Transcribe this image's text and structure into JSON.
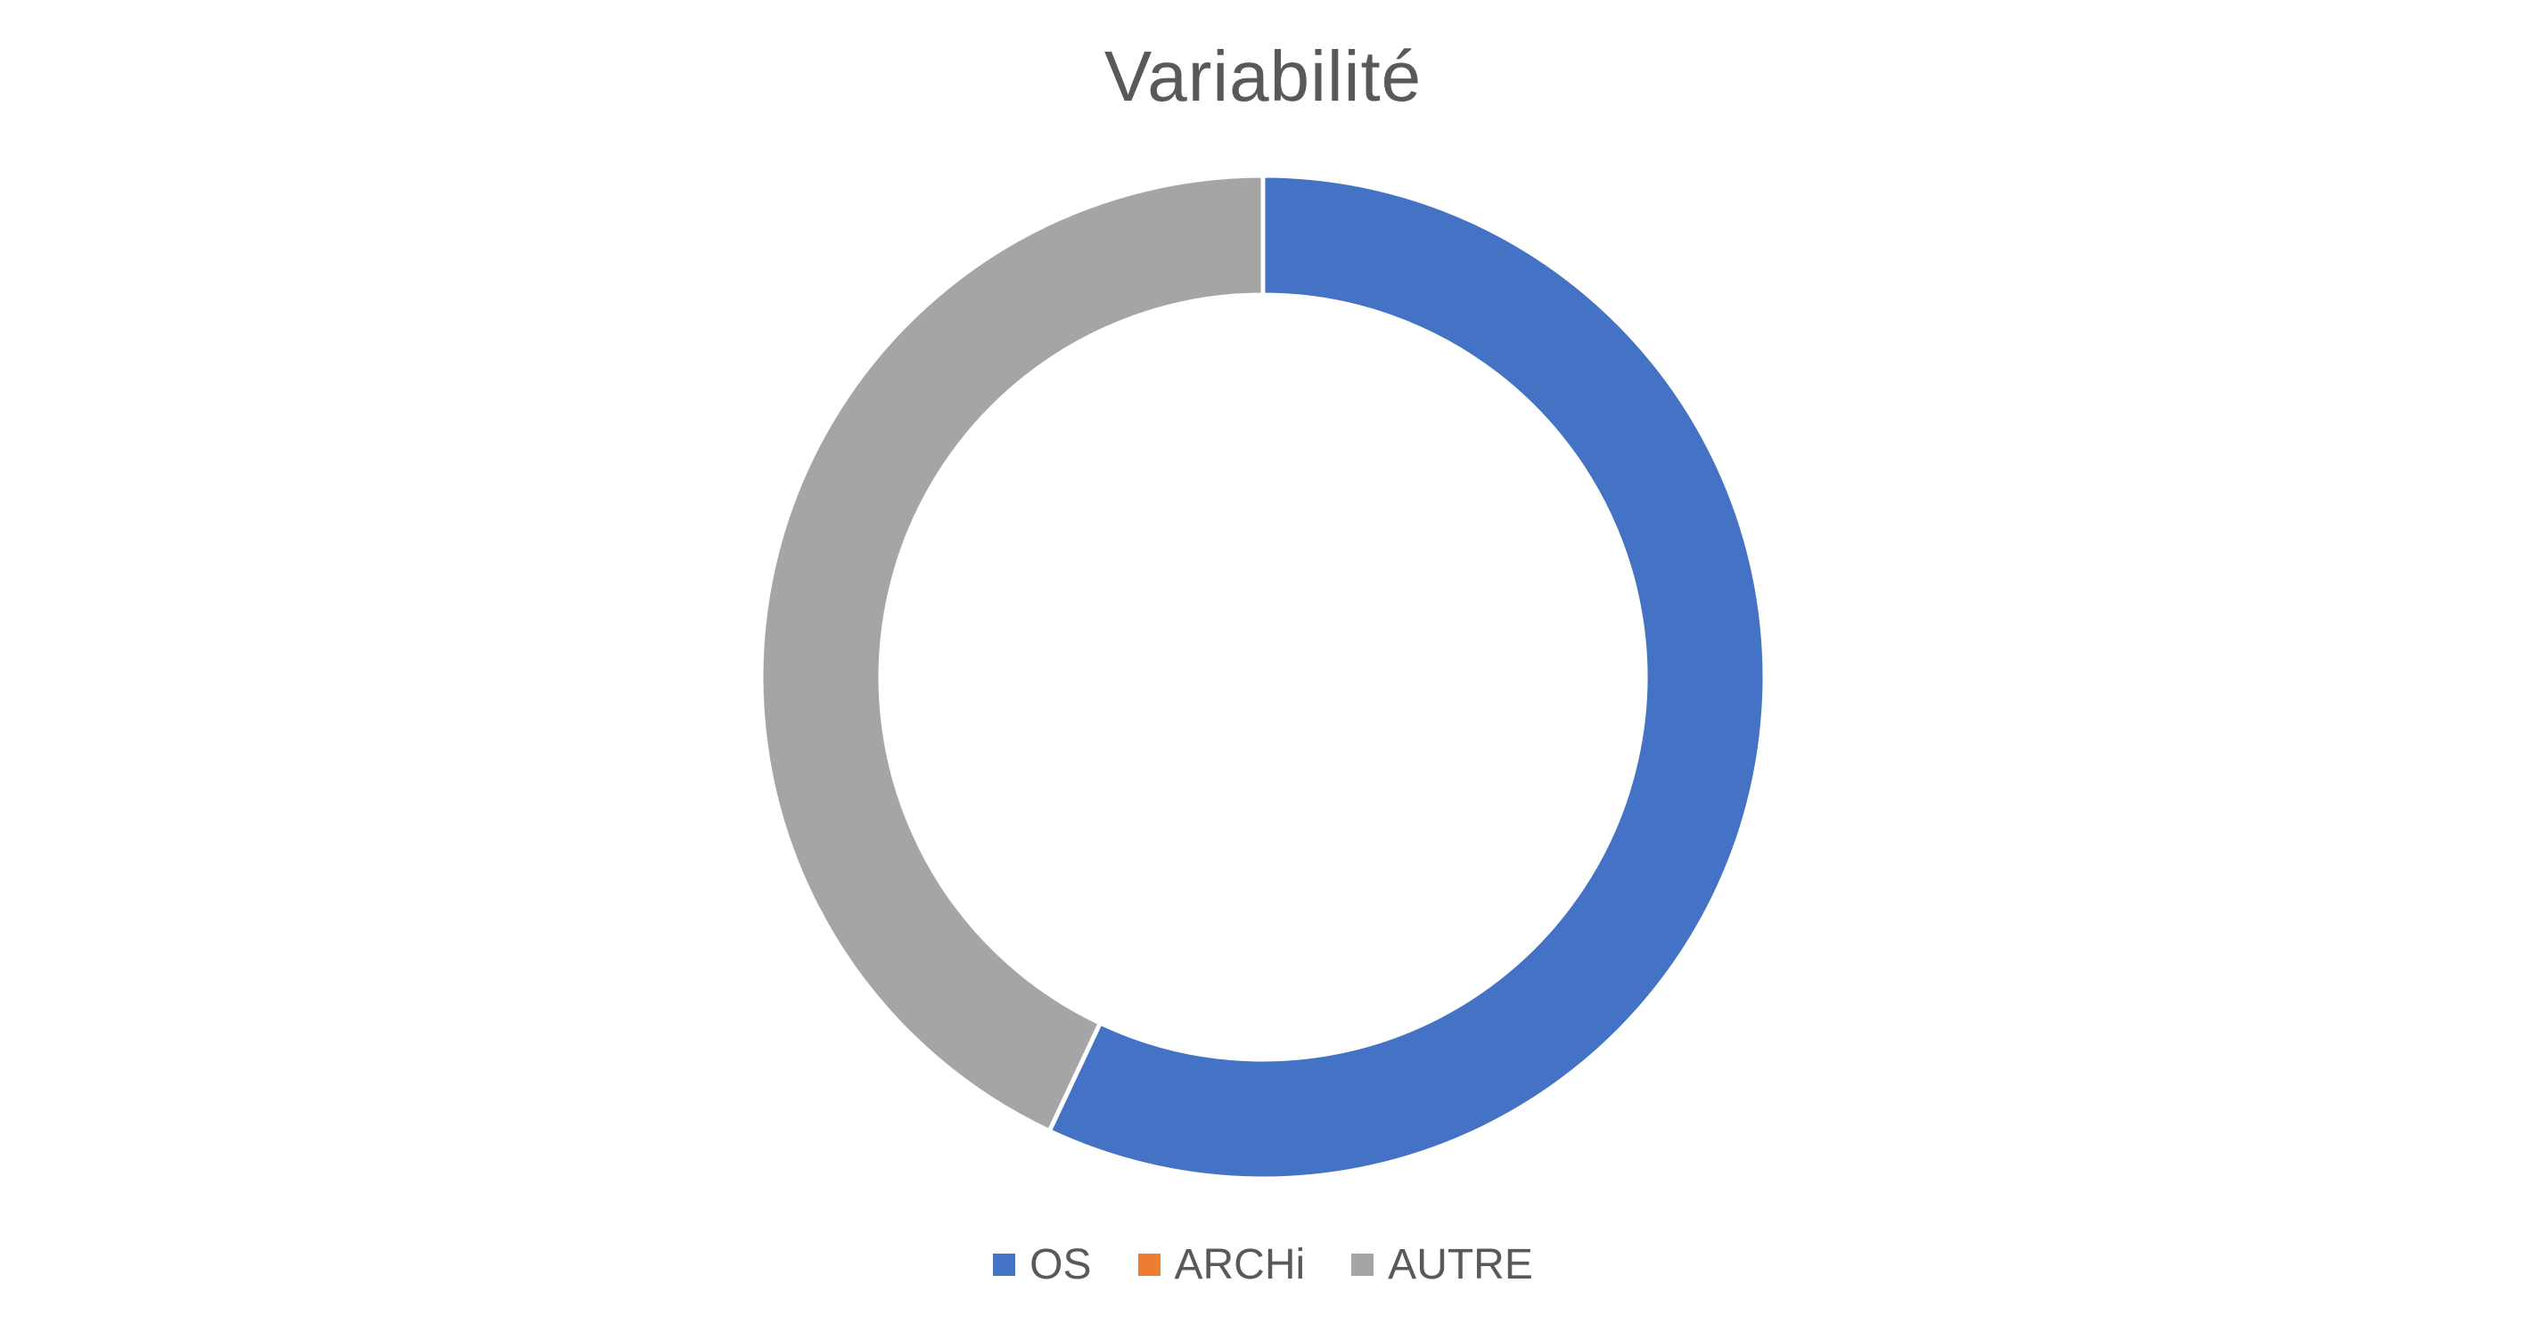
{
  "chart_data": {
    "type": "pie",
    "subtype": "doughnut",
    "title": "Variabilité",
    "categories": [
      "OS",
      "ARCHi",
      "AUTRE"
    ],
    "values": [
      57,
      0,
      43
    ],
    "colors": [
      "#4472C4",
      "#ED7D31",
      "#A5A5A5"
    ],
    "legend_position": "bottom"
  }
}
